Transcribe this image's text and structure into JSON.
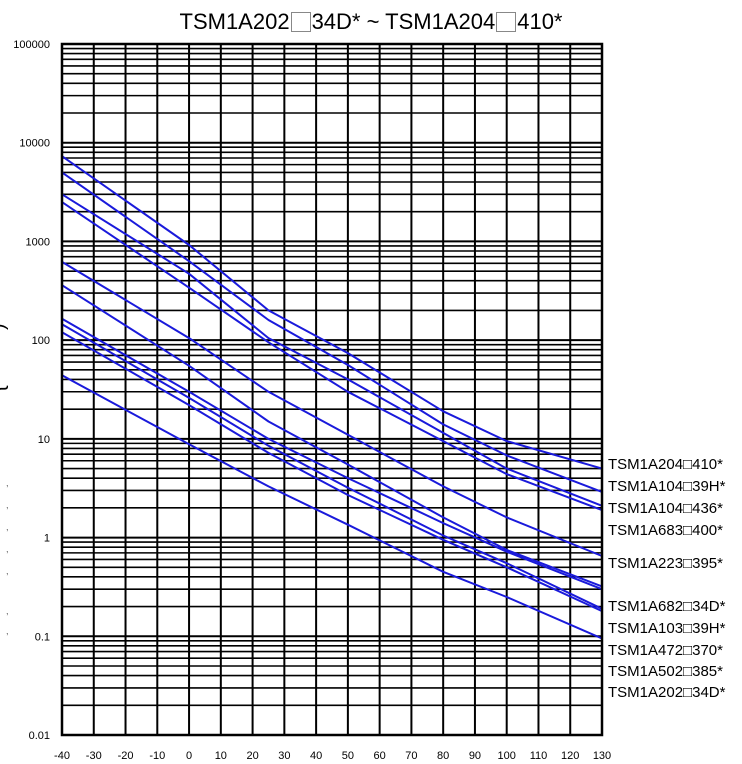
{
  "chart_data": {
    "type": "line",
    "title": {
      "part1": "TSM1A202",
      "part2": "34D* ~ TSM1A204",
      "part3": "410*"
    },
    "xlabel": "",
    "ylabel": "",
    "y_scale": "log",
    "xlim": [
      -40,
      130
    ],
    "ylim": [
      0.01,
      100000
    ],
    "grid": true,
    "legend_position": "right",
    "x_ticks": [
      -40,
      -30,
      -20,
      -10,
      0,
      10,
      20,
      30,
      40,
      50,
      60,
      70,
      80,
      90,
      100,
      110,
      120,
      130
    ],
    "x_tick_labels": [
      "-40",
      "-30",
      "-20",
      "-10",
      "0",
      "10",
      "20",
      "30",
      "40",
      "50",
      "60",
      "70",
      "80",
      "90",
      "100",
      "110",
      "120",
      "130"
    ],
    "y_ticks": [
      0.01,
      0.1,
      1,
      10,
      100,
      1000,
      10000,
      100000
    ],
    "y_tick_labels": [
      "0.01",
      "0.1",
      "1",
      "10",
      "100",
      "1000",
      "10000",
      "100000"
    ],
    "line_color": "#1a1adb",
    "legend": [
      "TSM1A204□410*",
      "TSM1A104□39H*",
      "TSM1A104□436*",
      "TSM1A683□400*",
      "TSM1A223□395*",
      "TSM1A682□34D*",
      "TSM1A103□39H*",
      "TSM1A472□370*",
      "TSM1A502□385*",
      "TSM1A202□34D*"
    ],
    "series": [
      {
        "x": [
          -40,
          0,
          25,
          50,
          80,
          100,
          130
        ],
        "values": [
          7300,
          920,
          200,
          74,
          19,
          9.5,
          5.0
        ]
      },
      {
        "x": [
          -40,
          0,
          25,
          50,
          80,
          100,
          130
        ],
        "values": [
          5000,
          630,
          160,
          56,
          14,
          6.8,
          2.9
        ]
      },
      {
        "x": [
          -40,
          0,
          25,
          50,
          80,
          100,
          130
        ],
        "values": [
          3000,
          470,
          105,
          40,
          11.5,
          5.0,
          2.1
        ]
      },
      {
        "x": [
          -40,
          0,
          25,
          50,
          80,
          100,
          130
        ],
        "values": [
          2500,
          340,
          95,
          30,
          9.5,
          4.4,
          1.9
        ]
      },
      {
        "x": [
          -40,
          0,
          25,
          50,
          80,
          100,
          130
        ],
        "values": [
          620,
          105,
          30,
          11,
          3.3,
          1.6,
          0.65
        ]
      },
      {
        "x": [
          -40,
          0,
          25,
          50,
          80,
          100,
          130
        ],
        "values": [
          360,
          55,
          15,
          5.5,
          1.6,
          0.75,
          0.32
        ]
      },
      {
        "x": [
          -40,
          0,
          25,
          50,
          80,
          100,
          130
        ],
        "values": [
          165,
          30,
          10,
          4.0,
          1.4,
          0.72,
          0.3
        ]
      },
      {
        "x": [
          -40,
          0,
          25,
          50,
          80,
          100,
          130
        ],
        "values": [
          145,
          26,
          8.5,
          3.2,
          1.05,
          0.55,
          0.19
        ]
      },
      {
        "x": [
          -40,
          0,
          25,
          50,
          80,
          100,
          130
        ],
        "values": [
          120,
          22,
          7.2,
          2.7,
          0.95,
          0.5,
          0.18
        ]
      },
      {
        "x": [
          -40,
          0,
          25,
          50,
          80,
          100,
          130
        ],
        "values": [
          44,
          8.8,
          3.3,
          1.35,
          0.45,
          0.25,
          0.095
        ]
      }
    ]
  }
}
